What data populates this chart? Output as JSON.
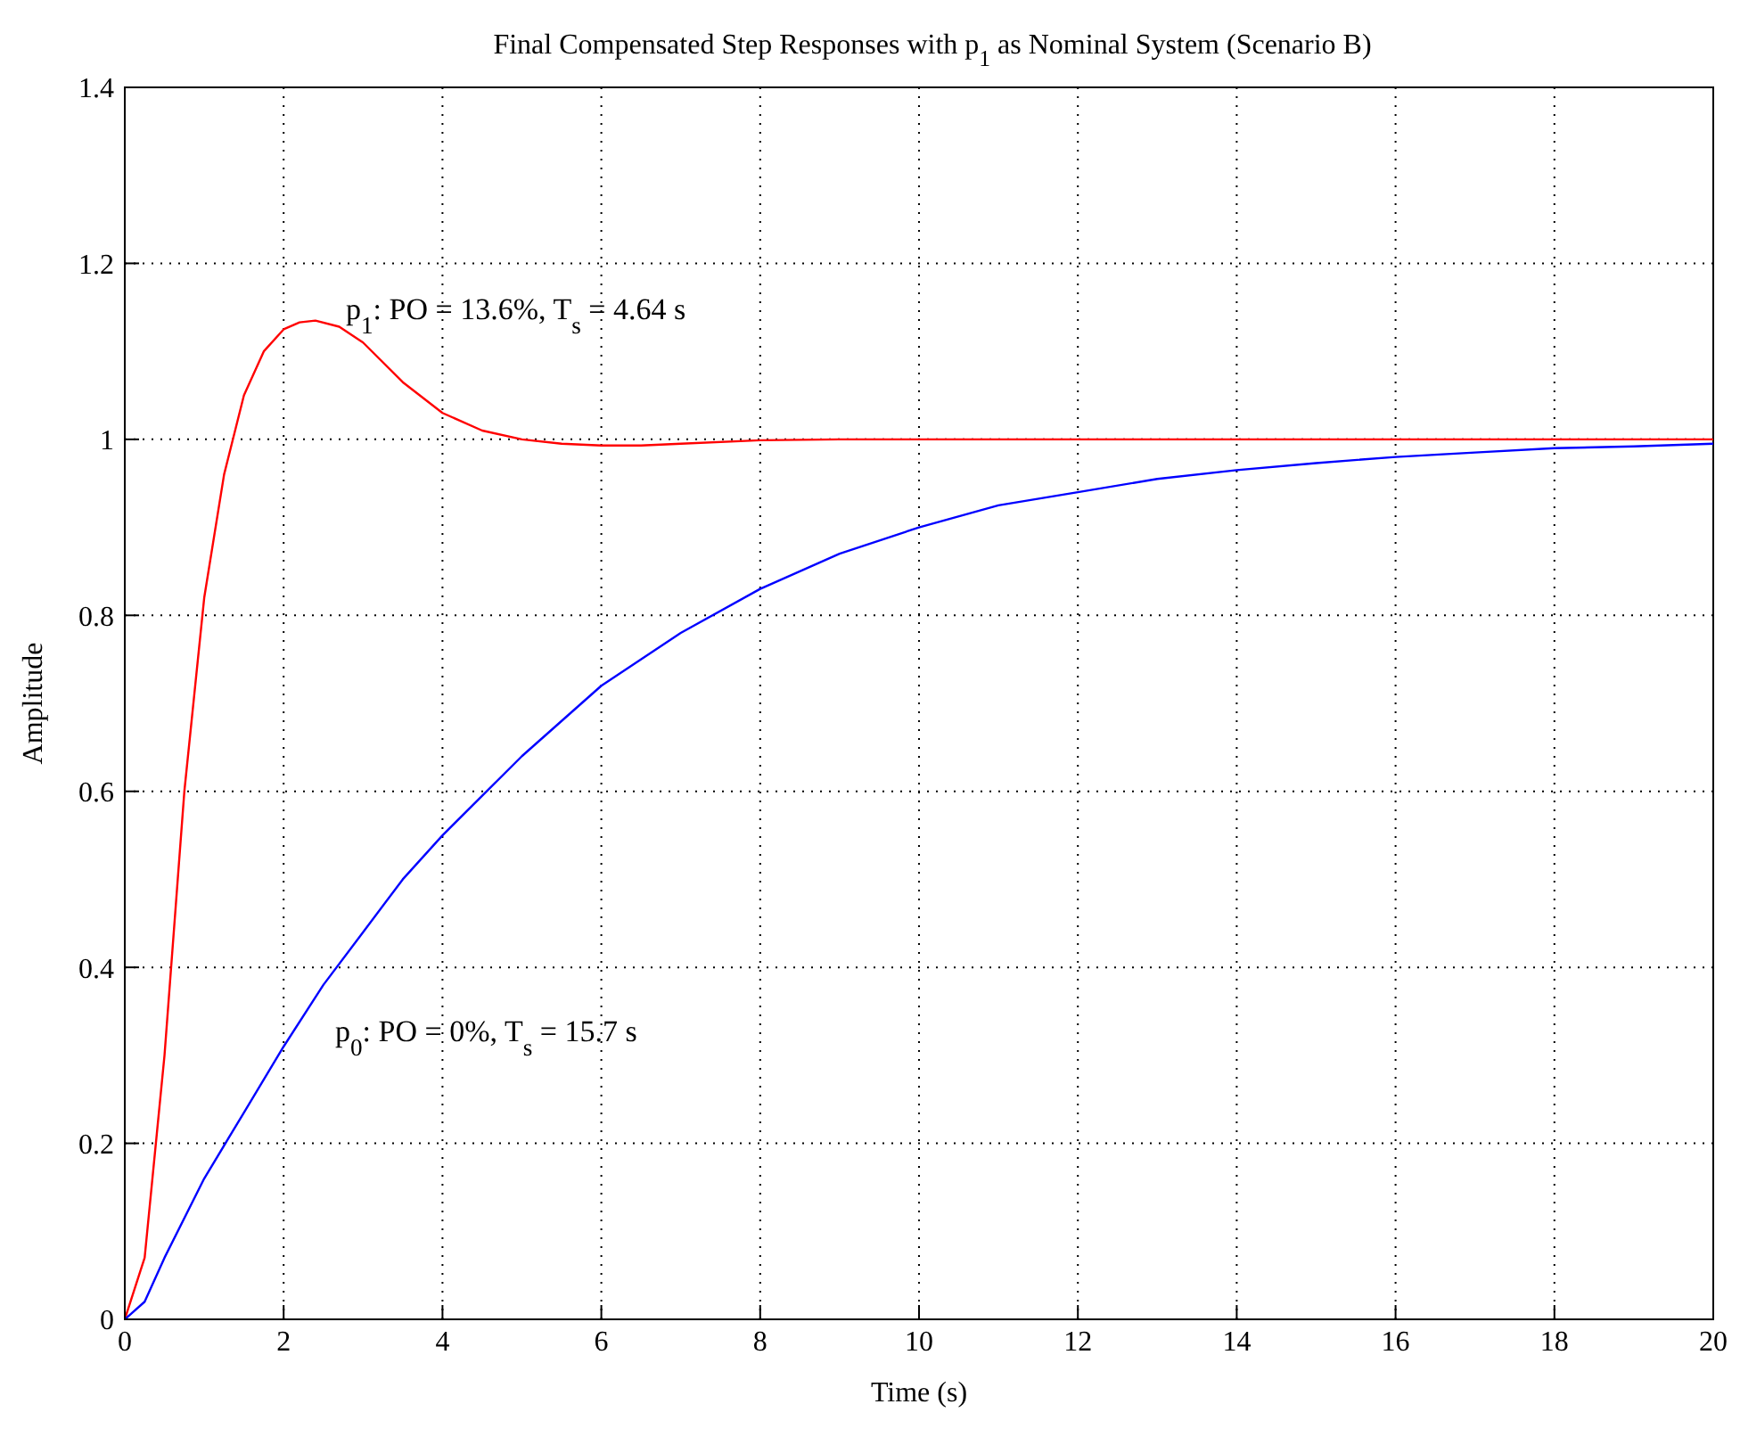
{
  "chart_data": {
    "type": "line",
    "title": "Final Compensated Step Responses with p$_{1}$ as Nominal System (Scenario B)",
    "xlabel": "Time (s)",
    "ylabel": "Amplitude",
    "xlim": [
      0,
      20
    ],
    "xticks": [
      0,
      2,
      4,
      6,
      8,
      10,
      12,
      14,
      16,
      18,
      20
    ],
    "ylim": [
      0,
      1.4
    ],
    "yticks": [
      0,
      0.2,
      0.4,
      0.6,
      0.8,
      1,
      1.2,
      1.4
    ],
    "grid": true,
    "line_style": "solid",
    "series": [
      {
        "color": "#ff0000",
        "x": [
          0,
          0.25,
          0.5,
          0.75,
          1,
          1.25,
          1.5,
          1.75,
          2,
          2.2,
          2.4,
          2.7,
          3,
          3.5,
          4,
          4.5,
          5,
          5.5,
          6,
          6.5,
          7,
          8,
          9,
          10,
          12,
          14,
          16,
          18,
          20
        ],
        "values": [
          0,
          0.07,
          0.3,
          0.6,
          0.82,
          0.96,
          1.05,
          1.1,
          1.125,
          1.133,
          1.135,
          1.128,
          1.11,
          1.065,
          1.03,
          1.01,
          1.0,
          0.995,
          0.993,
          0.993,
          0.995,
          0.999,
          1,
          1,
          1,
          1,
          1,
          1,
          1
        ]
      },
      {
        "color": "#0000ff",
        "x": [
          0,
          0.25,
          0.5,
          1,
          1.5,
          2,
          2.5,
          3,
          3.5,
          4,
          5,
          6,
          7,
          8,
          9,
          10,
          11,
          12,
          13,
          14,
          15,
          16,
          17,
          18,
          19,
          20
        ],
        "values": [
          0,
          0.02,
          0.07,
          0.16,
          0.235,
          0.31,
          0.38,
          0.44,
          0.5,
          0.55,
          0.64,
          0.72,
          0.78,
          0.83,
          0.87,
          0.9,
          0.925,
          0.94,
          0.955,
          0.965,
          0.973,
          0.98,
          0.985,
          0.99,
          0.992,
          0.995
        ]
      }
    ],
    "annotations": [
      "p$_{1}$: PO = 13.6%, T$_{s}$ = 4.64 s",
      "p$_{0}$: PO = 0%, T$_{s}$ = 15.7 s"
    ]
  }
}
